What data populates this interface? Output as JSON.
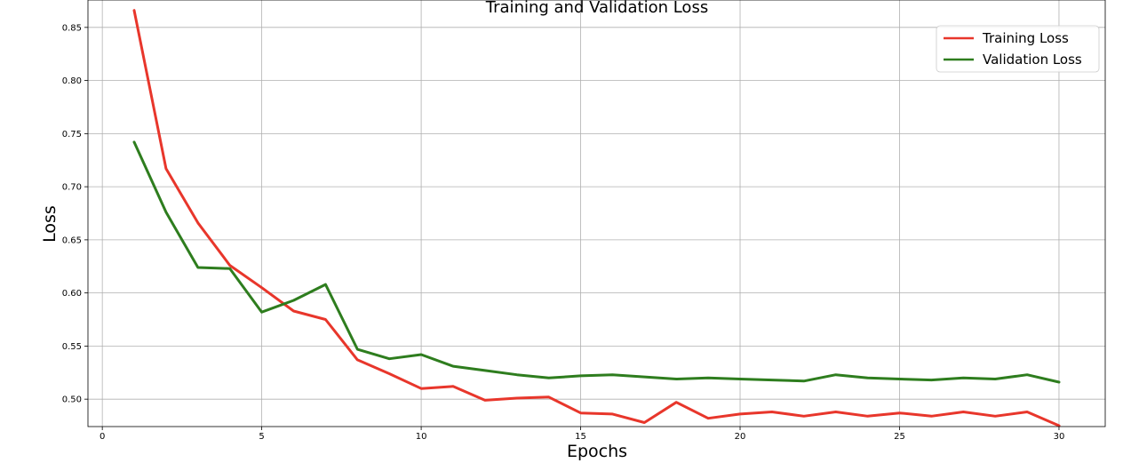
{
  "chart_data": {
    "type": "line",
    "title": "Training and Validation Loss",
    "xlabel": "Epochs",
    "ylabel": "Loss",
    "xlim": [
      -0.45,
      31.45
    ],
    "ylim": [
      0.4742,
      0.8758
    ],
    "xticks": [
      0,
      5,
      10,
      15,
      20,
      25,
      30
    ],
    "yticks": [
      0.5,
      0.55,
      0.6,
      0.65,
      0.7,
      0.75,
      0.8,
      0.85
    ],
    "ytick_labels": [
      "0.50",
      "0.55",
      "0.60",
      "0.65",
      "0.70",
      "0.75",
      "0.80",
      "0.85"
    ],
    "grid": true,
    "legend_position": "top-right",
    "x": [
      1,
      2,
      3,
      4,
      5,
      6,
      7,
      8,
      9,
      10,
      11,
      12,
      13,
      14,
      15,
      16,
      17,
      18,
      19,
      20,
      21,
      22,
      23,
      24,
      25,
      26,
      27,
      28,
      29,
      30
    ],
    "series": [
      {
        "name": "Training Loss",
        "color": "#e8362b",
        "values": [
          0.866,
          0.717,
          0.666,
          0.626,
          0.605,
          0.583,
          0.575,
          0.537,
          0.524,
          0.51,
          0.512,
          0.499,
          0.501,
          0.502,
          0.487,
          0.486,
          0.478,
          0.497,
          0.482,
          0.486,
          0.488,
          0.484,
          0.488,
          0.484,
          0.487,
          0.484,
          0.488,
          0.484,
          0.488,
          0.475
        ]
      },
      {
        "name": "Validation Loss",
        "color": "#2e7d1e",
        "values": [
          0.742,
          0.676,
          0.624,
          0.623,
          0.582,
          0.593,
          0.608,
          0.547,
          0.538,
          0.542,
          0.531,
          0.527,
          0.523,
          0.52,
          0.522,
          0.523,
          0.521,
          0.519,
          0.52,
          0.519,
          0.518,
          0.517,
          0.523,
          0.52,
          0.519,
          0.518,
          0.52,
          0.519,
          0.523,
          0.516
        ]
      }
    ]
  }
}
